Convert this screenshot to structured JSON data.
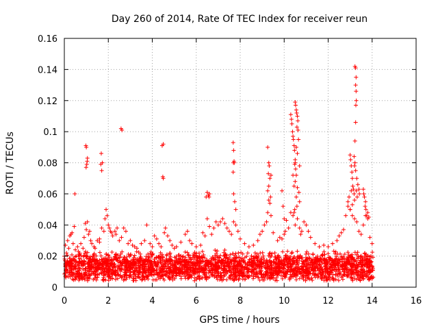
{
  "chart_data": {
    "type": "scatter",
    "title": "Day 260 of 2014, Rate Of TEC Index for receiver reun",
    "xlabel": "GPS time / hours",
    "ylabel": "ROTI / TECUs",
    "xlim": [
      0,
      16
    ],
    "ylim": [
      0,
      0.16
    ],
    "xticks": [
      0,
      2,
      4,
      6,
      8,
      10,
      12,
      14,
      16
    ],
    "yticks": [
      0,
      0.02,
      0.04,
      0.06,
      0.08,
      0.1,
      0.12,
      0.14,
      0.16
    ],
    "xtick_labels": [
      "0",
      "2",
      "4",
      "6",
      "8",
      "10",
      "12",
      "14",
      "16"
    ],
    "ytick_labels": [
      "0",
      "0.02",
      "0.04",
      "0.06",
      "0.08",
      "0.1",
      "0.12",
      "0.14",
      "0.16"
    ],
    "grid": true,
    "marker": "+",
    "color": "#ff0000",
    "baseline_band": {
      "x_range": [
        0,
        14.05
      ],
      "y_typical_range": [
        0.004,
        0.024
      ],
      "note": "dense cloud of points across the whole observation period"
    },
    "points": [
      [
        0.05,
        0.027
      ],
      [
        0.1,
        0.022
      ],
      [
        0.15,
        0.03
      ],
      [
        0.2,
        0.025
      ],
      [
        0.25,
        0.033
      ],
      [
        0.3,
        0.034
      ],
      [
        0.35,
        0.035
      ],
      [
        0.4,
        0.028
      ],
      [
        0.45,
        0.039
      ],
      [
        0.5,
        0.024
      ],
      [
        0.6,
        0.026
      ],
      [
        0.7,
        0.022
      ],
      [
        0.75,
        0.028
      ],
      [
        0.85,
        0.025
      ],
      [
        0.9,
        0.032
      ],
      [
        0.95,
        0.041
      ],
      [
        1.0,
        0.037
      ],
      [
        1.05,
        0.042
      ],
      [
        1.1,
        0.034
      ],
      [
        1.15,
        0.036
      ],
      [
        1.2,
        0.03
      ],
      [
        1.25,
        0.028
      ],
      [
        1.35,
        0.026
      ],
      [
        1.4,
        0.025
      ],
      [
        1.5,
        0.03
      ],
      [
        1.6,
        0.031
      ],
      [
        1.7,
        0.038
      ],
      [
        1.8,
        0.036
      ],
      [
        1.85,
        0.044
      ],
      [
        1.9,
        0.05
      ],
      [
        1.95,
        0.046
      ],
      [
        2.0,
        0.04
      ],
      [
        2.05,
        0.038
      ],
      [
        2.1,
        0.036
      ],
      [
        2.15,
        0.035
      ],
      [
        2.2,
        0.033
      ],
      [
        2.3,
        0.036
      ],
      [
        2.35,
        0.034
      ],
      [
        2.4,
        0.038
      ],
      [
        2.5,
        0.03
      ],
      [
        2.6,
        0.032
      ],
      [
        2.7,
        0.038
      ],
      [
        2.8,
        0.036
      ],
      [
        2.9,
        0.028
      ],
      [
        3.0,
        0.03
      ],
      [
        3.1,
        0.027
      ],
      [
        3.2,
        0.026
      ],
      [
        3.3,
        0.025
      ],
      [
        3.5,
        0.028
      ],
      [
        3.65,
        0.03
      ],
      [
        3.75,
        0.04
      ],
      [
        3.9,
        0.028
      ],
      [
        4.0,
        0.026
      ],
      [
        4.1,
        0.033
      ],
      [
        4.2,
        0.031
      ],
      [
        4.3,
        0.028
      ],
      [
        4.4,
        0.026
      ],
      [
        4.55,
        0.035
      ],
      [
        4.6,
        0.038
      ],
      [
        4.7,
        0.033
      ],
      [
        4.8,
        0.03
      ],
      [
        4.9,
        0.027
      ],
      [
        5.0,
        0.025
      ],
      [
        5.1,
        0.026
      ],
      [
        5.3,
        0.029
      ],
      [
        5.5,
        0.034
      ],
      [
        5.6,
        0.036
      ],
      [
        5.7,
        0.03
      ],
      [
        5.8,
        0.028
      ],
      [
        6.0,
        0.026
      ],
      [
        6.2,
        0.027
      ],
      [
        6.3,
        0.035
      ],
      [
        6.4,
        0.033
      ],
      [
        6.5,
        0.044
      ],
      [
        6.6,
        0.039
      ],
      [
        6.7,
        0.034
      ],
      [
        6.8,
        0.038
      ],
      [
        6.9,
        0.042
      ],
      [
        7.0,
        0.04
      ],
      [
        7.1,
        0.042
      ],
      [
        7.2,
        0.044
      ],
      [
        7.3,
        0.041
      ],
      [
        7.4,
        0.038
      ],
      [
        7.5,
        0.036
      ],
      [
        7.6,
        0.034
      ],
      [
        7.7,
        0.042
      ],
      [
        7.8,
        0.04
      ],
      [
        7.9,
        0.036
      ],
      [
        8.0,
        0.031
      ],
      [
        8.2,
        0.028
      ],
      [
        8.4,
        0.026
      ],
      [
        8.6,
        0.027
      ],
      [
        8.8,
        0.03
      ],
      [
        8.9,
        0.034
      ],
      [
        9.0,
        0.036
      ],
      [
        9.1,
        0.04
      ],
      [
        9.2,
        0.042
      ],
      [
        9.25,
        0.048
      ],
      [
        9.3,
        0.056
      ],
      [
        9.35,
        0.054
      ],
      [
        9.4,
        0.046
      ],
      [
        9.5,
        0.035
      ],
      [
        9.7,
        0.03
      ],
      [
        9.8,
        0.032
      ],
      [
        9.9,
        0.031
      ],
      [
        10.0,
        0.034
      ],
      [
        10.05,
        0.036
      ],
      [
        10.1,
        0.043
      ],
      [
        10.2,
        0.038
      ],
      [
        10.3,
        0.048
      ],
      [
        10.4,
        0.046
      ],
      [
        10.5,
        0.04
      ],
      [
        10.6,
        0.044
      ],
      [
        10.7,
        0.038
      ],
      [
        10.75,
        0.034
      ],
      [
        10.8,
        0.036
      ],
      [
        10.9,
        0.042
      ],
      [
        11.0,
        0.04
      ],
      [
        11.1,
        0.036
      ],
      [
        11.2,
        0.032
      ],
      [
        11.4,
        0.028
      ],
      [
        11.6,
        0.026
      ],
      [
        11.8,
        0.027
      ],
      [
        12.0,
        0.026
      ],
      [
        12.2,
        0.028
      ],
      [
        12.4,
        0.03
      ],
      [
        12.5,
        0.033
      ],
      [
        12.6,
        0.035
      ],
      [
        12.7,
        0.037
      ],
      [
        12.8,
        0.046
      ],
      [
        12.9,
        0.052
      ],
      [
        13.0,
        0.05
      ],
      [
        13.1,
        0.046
      ],
      [
        13.2,
        0.044
      ],
      [
        13.3,
        0.042
      ],
      [
        13.4,
        0.036
      ],
      [
        13.5,
        0.034
      ],
      [
        13.6,
        0.04
      ],
      [
        13.7,
        0.046
      ],
      [
        13.8,
        0.044
      ],
      [
        13.9,
        0.032
      ],
      [
        14.0,
        0.028
      ],
      [
        0.48,
        0.06
      ],
      [
        0.98,
        0.091
      ],
      [
        1.0,
        0.09
      ],
      [
        1.02,
        0.079
      ],
      [
        1.04,
        0.081
      ],
      [
        1.05,
        0.083
      ],
      [
        0.99,
        0.077
      ],
      [
        1.68,
        0.086
      ],
      [
        1.66,
        0.079
      ],
      [
        1.7,
        0.075
      ],
      [
        1.73,
        0.08
      ],
      [
        1.6,
        0.029
      ],
      [
        2.58,
        0.102
      ],
      [
        2.62,
        0.101
      ],
      [
        4.45,
        0.091
      ],
      [
        4.5,
        0.092
      ],
      [
        4.48,
        0.071
      ],
      [
        4.5,
        0.07
      ],
      [
        6.5,
        0.061
      ],
      [
        6.55,
        0.059
      ],
      [
        6.58,
        0.058
      ],
      [
        6.6,
        0.06
      ],
      [
        6.45,
        0.058
      ],
      [
        7.68,
        0.093
      ],
      [
        7.7,
        0.088
      ],
      [
        7.72,
        0.081
      ],
      [
        7.69,
        0.08
      ],
      [
        7.73,
        0.08
      ],
      [
        7.68,
        0.074
      ],
      [
        7.7,
        0.06
      ],
      [
        7.75,
        0.055
      ],
      [
        7.8,
        0.05
      ],
      [
        9.25,
        0.09
      ],
      [
        9.3,
        0.08
      ],
      [
        9.32,
        0.078
      ],
      [
        9.28,
        0.073
      ],
      [
        9.35,
        0.07
      ],
      [
        9.3,
        0.065
      ],
      [
        9.4,
        0.072
      ],
      [
        9.25,
        0.062
      ],
      [
        9.38,
        0.058
      ],
      [
        9.9,
        0.062
      ],
      [
        9.95,
        0.052
      ],
      [
        10.0,
        0.044
      ],
      [
        10.3,
        0.111
      ],
      [
        10.33,
        0.108
      ],
      [
        10.35,
        0.105
      ],
      [
        10.38,
        0.1
      ],
      [
        10.4,
        0.097
      ],
      [
        10.42,
        0.095
      ],
      [
        10.45,
        0.091
      ],
      [
        10.47,
        0.088
      ],
      [
        10.5,
        0.08
      ],
      [
        10.48,
        0.079
      ],
      [
        10.52,
        0.076
      ],
      [
        10.55,
        0.072
      ],
      [
        10.5,
        0.068
      ],
      [
        10.45,
        0.065
      ],
      [
        10.6,
        0.064
      ],
      [
        10.5,
        0.119
      ],
      [
        10.52,
        0.117
      ],
      [
        10.55,
        0.114
      ],
      [
        10.57,
        0.112
      ],
      [
        10.6,
        0.11
      ],
      [
        10.62,
        0.107
      ],
      [
        10.58,
        0.103
      ],
      [
        10.63,
        0.101
      ],
      [
        10.65,
        0.095
      ],
      [
        10.55,
        0.09
      ],
      [
        10.6,
        0.086
      ],
      [
        10.5,
        0.082
      ],
      [
        10.7,
        0.078
      ],
      [
        10.4,
        0.072
      ],
      [
        10.67,
        0.061
      ],
      [
        10.55,
        0.058
      ],
      [
        10.7,
        0.055
      ],
      [
        10.58,
        0.052
      ],
      [
        10.48,
        0.05
      ],
      [
        10.45,
        0.048
      ],
      [
        13.0,
        0.085
      ],
      [
        13.02,
        0.082
      ],
      [
        13.05,
        0.078
      ],
      [
        13.08,
        0.074
      ],
      [
        13.1,
        0.07
      ],
      [
        13.12,
        0.065
      ],
      [
        13.15,
        0.063
      ],
      [
        13.18,
        0.06
      ],
      [
        13.2,
        0.056
      ],
      [
        13.05,
        0.062
      ],
      [
        12.95,
        0.058
      ],
      [
        12.9,
        0.055
      ],
      [
        13.1,
        0.053
      ],
      [
        13.0,
        0.05
      ],
      [
        13.22,
        0.142
      ],
      [
        13.25,
        0.141
      ],
      [
        13.27,
        0.135
      ],
      [
        13.25,
        0.13
      ],
      [
        13.27,
        0.126
      ],
      [
        13.28,
        0.12
      ],
      [
        13.26,
        0.117
      ],
      [
        13.25,
        0.106
      ],
      [
        13.22,
        0.094
      ],
      [
        13.18,
        0.084
      ],
      [
        13.22,
        0.08
      ],
      [
        13.2,
        0.078
      ],
      [
        13.25,
        0.075
      ],
      [
        13.3,
        0.07
      ],
      [
        13.35,
        0.066
      ],
      [
        13.28,
        0.062
      ],
      [
        13.32,
        0.058
      ],
      [
        13.4,
        0.063
      ],
      [
        13.42,
        0.06
      ],
      [
        13.6,
        0.063
      ],
      [
        13.62,
        0.06
      ],
      [
        13.65,
        0.058
      ],
      [
        13.7,
        0.055
      ],
      [
        13.68,
        0.052
      ],
      [
        13.72,
        0.05
      ],
      [
        13.75,
        0.046
      ],
      [
        13.8,
        0.048
      ],
      [
        13.85,
        0.045
      ]
    ]
  }
}
